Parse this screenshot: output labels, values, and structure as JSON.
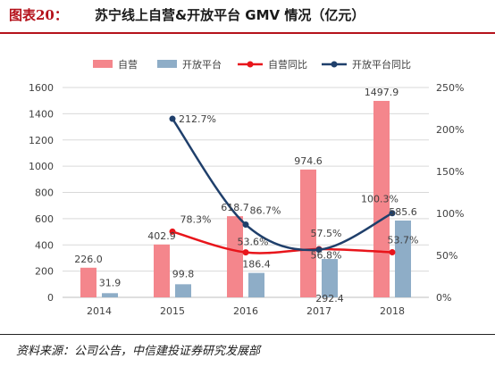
{
  "figure": {
    "label": "图表20：",
    "title": "苏宁线上自营&开放平台 GMV 情况（亿元）",
    "source": "资料来源：公司公告，中信建投证券研究发展部"
  },
  "colors": {
    "bar_self": "#f4868c",
    "bar_open": "#8eadc7",
    "line_self": "#e8151b",
    "line_open": "#1f3f6b",
    "accent": "#b5121b"
  },
  "chart_data": {
    "type": "bar",
    "categories": [
      "2014",
      "2015",
      "2016",
      "2017",
      "2018"
    ],
    "series": [
      {
        "name": "自营",
        "kind": "bar",
        "axis": "left",
        "values": [
          226.0,
          402.9,
          618.7,
          974.6,
          1497.9
        ],
        "labels": [
          "226.0",
          "402.9",
          "618.7",
          "974.6",
          "1497.9"
        ]
      },
      {
        "name": "开放平台",
        "kind": "bar",
        "axis": "left",
        "values": [
          31.9,
          99.8,
          186.4,
          292.4,
          585.6
        ],
        "labels": [
          "31.9",
          "99.8",
          "186.4",
          "292.4",
          "585.6"
        ]
      },
      {
        "name": "自营同比",
        "kind": "line",
        "axis": "right",
        "values": [
          null,
          78.3,
          53.6,
          57.5,
          53.7
        ],
        "labels": [
          "",
          "78.3%",
          "53.6%",
          "57.5%",
          "53.7%"
        ]
      },
      {
        "name": "开放平台同比",
        "kind": "line",
        "axis": "right",
        "values": [
          null,
          212.7,
          86.7,
          56.8,
          100.3
        ],
        "labels": [
          "",
          "212.7%",
          "86.7%",
          "56.8%",
          "100.3%"
        ]
      }
    ],
    "y_left": {
      "min": 0,
      "max": 1600,
      "step": 200,
      "ticks": [
        "0",
        "200",
        "400",
        "600",
        "800",
        "1000",
        "1200",
        "1400",
        "1600"
      ]
    },
    "y_right": {
      "min": 0,
      "max": 250,
      "step": 50,
      "ticks": [
        "0%",
        "50%",
        "100%",
        "150%",
        "200%",
        "250%"
      ]
    },
    "grid": true,
    "legend_position": "top"
  }
}
